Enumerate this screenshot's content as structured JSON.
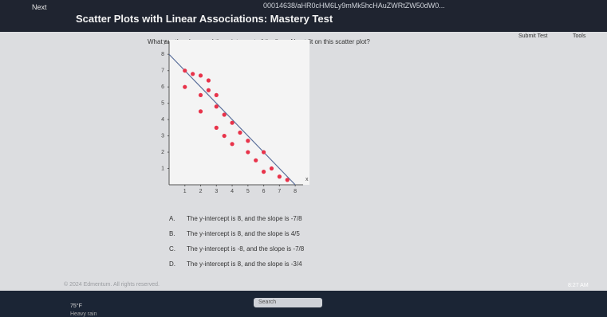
{
  "browser": {
    "url": "00014638/aHR0cHM6Ly9mMk5hcHAuZWRtZW50dW0..."
  },
  "header": {
    "nav": "Next",
    "title": "Scatter Plots with Linear Associations: Mastery Test",
    "submit": "Submit Test",
    "tools": "Tools"
  },
  "question": {
    "prompt": "What are the slope and the y-intercept of the line of best fit on this scatter plot?",
    "chart": {
      "type": "scatter",
      "x_label": "x",
      "y_label": "y",
      "color": "#e8334a",
      "line_color": "#5a6e9a",
      "x": [
        1,
        1.5,
        2,
        2.5,
        1,
        2,
        2.5,
        3,
        2,
        3,
        3.5,
        3,
        4,
        4.5,
        3.5,
        4,
        5,
        5,
        6,
        5.5,
        6.5,
        6,
        7,
        7.5
      ],
      "y": [
        7,
        6.8,
        6.7,
        6.4,
        6,
        5.5,
        5.8,
        5.5,
        4.5,
        4.8,
        4.3,
        3.5,
        3.8,
        3.2,
        3,
        2.5,
        2.7,
        2,
        2,
        1.5,
        1,
        0.8,
        0.5,
        0.3
      ],
      "best_fit": {
        "x": [
          0,
          8
        ],
        "y": [
          8,
          0
        ]
      },
      "xlim": [
        0,
        8.5
      ],
      "ylim": [
        0,
        8.5
      ],
      "xticks": [
        1,
        2,
        3,
        4,
        5,
        6,
        7,
        8
      ],
      "yticks": [
        1,
        2,
        3,
        4,
        5,
        6,
        7,
        8
      ]
    },
    "choices": [
      {
        "letter": "A.",
        "text": "The y-intercept is 8, and the slope is -7/8"
      },
      {
        "letter": "B.",
        "text": "The y-intercept is 8, and the slope is 4/5"
      },
      {
        "letter": "C.",
        "text": "The y-intercept is -8, and the slope is -7/8"
      },
      {
        "letter": "D.",
        "text": "The y-intercept is 8, and the slope is -3/4"
      }
    ]
  },
  "footer": "© 2024 Edmentum. All rights reserved.",
  "taskbar": {
    "weather_temp": "75°F",
    "weather_desc": "Heavy rain",
    "search": "Search",
    "time": "8:27 AM"
  }
}
